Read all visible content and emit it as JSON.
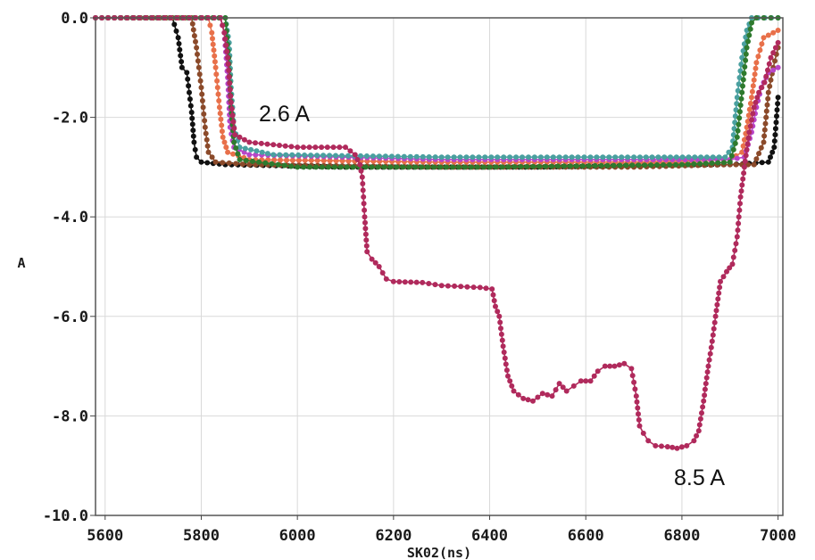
{
  "chart_data": {
    "type": "line",
    "title": "",
    "xlabel": "SK02(ns)",
    "ylabel": "A",
    "xlim": [
      5580,
      7010
    ],
    "ylim": [
      -10,
      0
    ],
    "x_ticks": [
      "5600",
      "5800",
      "6000",
      "6200",
      "6400",
      "6600",
      "6800",
      "7000"
    ],
    "y_ticks": [
      "0.0",
      "-2.0",
      "-4.0",
      "-6.0",
      "-8.0",
      "-10.0"
    ],
    "x_tick_values": [
      5600,
      5800,
      6000,
      6200,
      6400,
      6600,
      6800,
      7000
    ],
    "y_tick_values": [
      0,
      -2,
      -4,
      -6,
      -8,
      -10
    ],
    "grid": true,
    "annotations": [
      {
        "text": "2.6 A",
        "x": 5930,
        "y": -1.85
      },
      {
        "text": "8.5 A",
        "x": 6780,
        "y": -9.35
      }
    ],
    "series": [
      {
        "color": "#111111",
        "points": [
          [
            5580,
            0
          ],
          [
            5740,
            0
          ],
          [
            5752,
            -0.4
          ],
          [
            5760,
            -1.0
          ],
          [
            5770,
            -1.1
          ],
          [
            5780,
            -1.9
          ],
          [
            5785,
            -2.5
          ],
          [
            5790,
            -2.8
          ],
          [
            5800,
            -2.9
          ],
          [
            5850,
            -2.95
          ],
          [
            6100,
            -3.0
          ],
          [
            6500,
            -3.0
          ],
          [
            6800,
            -2.95
          ],
          [
            6900,
            -2.95
          ],
          [
            6980,
            -2.9
          ],
          [
            6992,
            -2.6
          ],
          [
            7000,
            -1.6
          ]
        ]
      },
      {
        "color": "#8b4a2a",
        "points": [
          [
            5580,
            0
          ],
          [
            5780,
            0
          ],
          [
            5790,
            -0.6
          ],
          [
            5800,
            -1.4
          ],
          [
            5808,
            -2.2
          ],
          [
            5815,
            -2.7
          ],
          [
            5830,
            -2.9
          ],
          [
            5900,
            -2.95
          ],
          [
            6300,
            -3.0
          ],
          [
            6700,
            -3.0
          ],
          [
            6900,
            -2.95
          ],
          [
            6950,
            -2.95
          ],
          [
            6970,
            -2.5
          ],
          [
            6980,
            -1.5
          ],
          [
            6990,
            -1.0
          ],
          [
            7000,
            -0.6
          ]
        ]
      },
      {
        "color": "#e8704a",
        "points": [
          [
            5580,
            0
          ],
          [
            5815,
            0
          ],
          [
            5822,
            -0.3
          ],
          [
            5830,
            -1.0
          ],
          [
            5838,
            -1.8
          ],
          [
            5845,
            -2.4
          ],
          [
            5855,
            -2.7
          ],
          [
            5900,
            -2.85
          ],
          [
            6300,
            -2.9
          ],
          [
            6700,
            -2.9
          ],
          [
            6900,
            -2.85
          ],
          [
            6925,
            -2.7
          ],
          [
            6935,
            -2.2
          ],
          [
            6945,
            -1.6
          ],
          [
            6955,
            -0.9
          ],
          [
            6970,
            -0.4
          ],
          [
            7000,
            -0.25
          ]
        ]
      },
      {
        "color": "#b845c8",
        "points": [
          [
            5580,
            0
          ],
          [
            5840,
            0
          ],
          [
            5848,
            -0.3
          ],
          [
            5855,
            -1.2
          ],
          [
            5860,
            -2.2
          ],
          [
            5868,
            -2.6
          ],
          [
            5900,
            -2.75
          ],
          [
            6300,
            -2.85
          ],
          [
            6700,
            -2.85
          ],
          [
            6900,
            -2.85
          ],
          [
            6930,
            -2.8
          ],
          [
            6945,
            -2.3
          ],
          [
            6955,
            -1.8
          ],
          [
            6965,
            -1.4
          ],
          [
            6980,
            -1.1
          ],
          [
            7000,
            -1.0
          ]
        ]
      },
      {
        "color": "#4aa0a0",
        "points": [
          [
            5580,
            0
          ],
          [
            5850,
            0
          ],
          [
            5858,
            -0.5
          ],
          [
            5862,
            -1.4
          ],
          [
            5868,
            -2.2
          ],
          [
            5880,
            -2.6
          ],
          [
            5950,
            -2.75
          ],
          [
            6300,
            -2.8
          ],
          [
            6700,
            -2.8
          ],
          [
            6890,
            -2.8
          ],
          [
            6905,
            -2.6
          ],
          [
            6915,
            -1.6
          ],
          [
            6925,
            -0.8
          ],
          [
            6935,
            -0.25
          ],
          [
            6945,
            0
          ],
          [
            7000,
            0
          ]
        ]
      },
      {
        "color": "#2e7a2e",
        "points": [
          [
            5580,
            0
          ],
          [
            5850,
            0
          ],
          [
            5857,
            -0.8
          ],
          [
            5862,
            -1.8
          ],
          [
            5868,
            -2.5
          ],
          [
            5880,
            -2.85
          ],
          [
            6000,
            -3.0
          ],
          [
            6400,
            -3.0
          ],
          [
            6800,
            -2.95
          ],
          [
            6900,
            -2.9
          ],
          [
            6915,
            -2.4
          ],
          [
            6925,
            -1.5
          ],
          [
            6935,
            -0.6
          ],
          [
            6945,
            -0.1
          ],
          [
            6955,
            0
          ],
          [
            7000,
            0
          ]
        ]
      },
      {
        "color": "#b02a5c",
        "points": [
          [
            5580,
            0
          ],
          [
            5840,
            0
          ],
          [
            5848,
            -0.3
          ],
          [
            5855,
            -0.8
          ],
          [
            5862,
            -1.7
          ],
          [
            5870,
            -2.35
          ],
          [
            5900,
            -2.5
          ],
          [
            5950,
            -2.55
          ],
          [
            6000,
            -2.6
          ],
          [
            6050,
            -2.6
          ],
          [
            6100,
            -2.6
          ],
          [
            6120,
            -2.75
          ],
          [
            6130,
            -2.95
          ],
          [
            6135,
            -3.2
          ],
          [
            6140,
            -4.0
          ],
          [
            6145,
            -4.7
          ],
          [
            6155,
            -4.85
          ],
          [
            6170,
            -5.0
          ],
          [
            6185,
            -5.25
          ],
          [
            6200,
            -5.3
          ],
          [
            6260,
            -5.32
          ],
          [
            6300,
            -5.38
          ],
          [
            6340,
            -5.4
          ],
          [
            6380,
            -5.42
          ],
          [
            6405,
            -5.45
          ],
          [
            6412,
            -5.8
          ],
          [
            6420,
            -6.0
          ],
          [
            6428,
            -6.6
          ],
          [
            6438,
            -7.2
          ],
          [
            6450,
            -7.5
          ],
          [
            6470,
            -7.65
          ],
          [
            6490,
            -7.7
          ],
          [
            6510,
            -7.55
          ],
          [
            6530,
            -7.6
          ],
          [
            6545,
            -7.35
          ],
          [
            6560,
            -7.5
          ],
          [
            6575,
            -7.4
          ],
          [
            6590,
            -7.3
          ],
          [
            6610,
            -7.3
          ],
          [
            6625,
            -7.1
          ],
          [
            6640,
            -7.0
          ],
          [
            6660,
            -7.0
          ],
          [
            6680,
            -6.95
          ],
          [
            6695,
            -7.05
          ],
          [
            6705,
            -7.6
          ],
          [
            6712,
            -8.2
          ],
          [
            6720,
            -8.35
          ],
          [
            6730,
            -8.5
          ],
          [
            6745,
            -8.6
          ],
          [
            6770,
            -8.62
          ],
          [
            6790,
            -8.65
          ],
          [
            6810,
            -8.6
          ],
          [
            6825,
            -8.5
          ],
          [
            6835,
            -8.3
          ],
          [
            6845,
            -7.7
          ],
          [
            6855,
            -7.0
          ],
          [
            6863,
            -6.5
          ],
          [
            6870,
            -6.0
          ],
          [
            6880,
            -5.3
          ],
          [
            6893,
            -5.1
          ],
          [
            6905,
            -4.95
          ],
          [
            6915,
            -4.4
          ],
          [
            6922,
            -3.6
          ],
          [
            6930,
            -3.0
          ],
          [
            6940,
            -2.3
          ],
          [
            6950,
            -1.8
          ],
          [
            6960,
            -1.5
          ],
          [
            6972,
            -1.3
          ],
          [
            6985,
            -0.8
          ],
          [
            7000,
            -0.5
          ]
        ]
      }
    ]
  }
}
